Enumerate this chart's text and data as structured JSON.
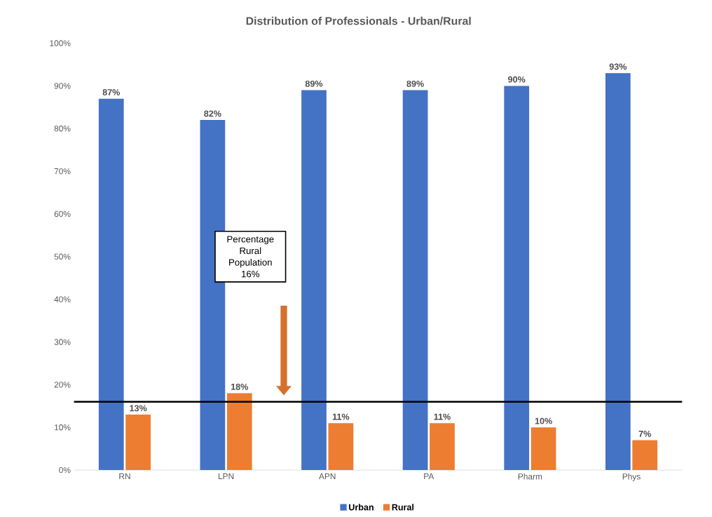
{
  "chart_data": {
    "type": "bar",
    "title": "Distribution of Professionals - Urban/Rural",
    "categories": [
      "RN",
      "LPN",
      "APN",
      "PA",
      "Pharm",
      "Phys"
    ],
    "series": [
      {
        "name": "Urban",
        "color": "#4472c4",
        "values": [
          87,
          82,
          89,
          89,
          90,
          93
        ],
        "value_labels": [
          "87%",
          "82%",
          "89%",
          "89%",
          "90%",
          "93%"
        ]
      },
      {
        "name": "Rural",
        "color": "#ed7d31",
        "values": [
          13,
          18,
          11,
          11,
          10,
          7
        ],
        "value_labels": [
          "13%",
          "18%",
          "11%",
          "11%",
          "10%",
          "7%"
        ]
      }
    ],
    "ylim": [
      0,
      100
    ],
    "yticks": [
      {
        "value": 0,
        "label": "0%"
      },
      {
        "value": 10,
        "label": "10%"
      },
      {
        "value": 20,
        "label": "20%"
      },
      {
        "value": 30,
        "label": "30%"
      },
      {
        "value": 40,
        "label": "40%"
      },
      {
        "value": 50,
        "label": "50%"
      },
      {
        "value": 60,
        "label": "60%"
      },
      {
        "value": 70,
        "label": "70%"
      },
      {
        "value": 80,
        "label": "80%"
      },
      {
        "value": 90,
        "label": "90%"
      },
      {
        "value": 100,
        "label": "100%"
      }
    ],
    "ref_lines": [
      {
        "axis": "y",
        "value": 16,
        "color": "#000000"
      }
    ],
    "annotations": [
      "Percentage Rural Population 16%"
    ],
    "legend": "bottom",
    "grid": false
  }
}
